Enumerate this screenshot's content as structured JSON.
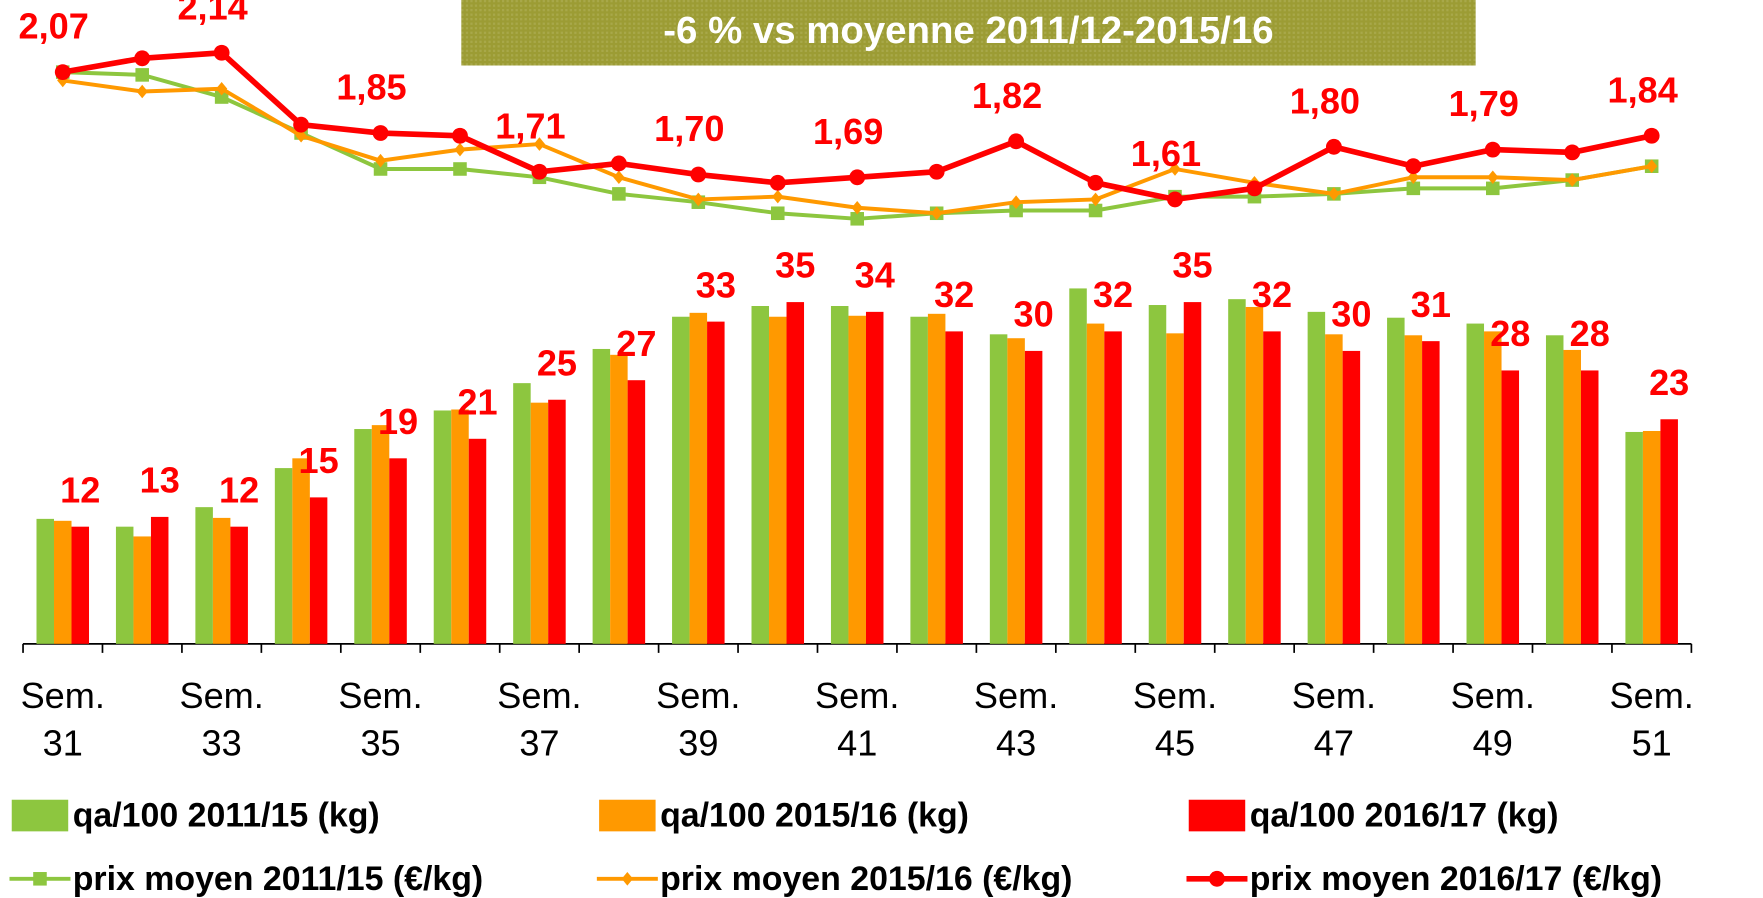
{
  "chart_data": {
    "type": "bar",
    "annotation": "-6 % vs moyenne 2011/12-2015/16",
    "categories": [
      "Sem. 31",
      null,
      "Sem. 33",
      null,
      "Sem. 35",
      null,
      "Sem. 37",
      null,
      "Sem. 39",
      null,
      "Sem. 41",
      null,
      "Sem. 43",
      null,
      "Sem. 45",
      null,
      "Sem. 47",
      null,
      "Sem. 49",
      null,
      "Sem. 51"
    ],
    "ylim": [
      0,
      45
    ],
    "y2lim": [
      1.2,
      2.2
    ],
    "series": [
      {
        "name": "qa/100 2011/15 (kg)",
        "type": "bar",
        "color": "#8dc63f",
        "values": [
          12.8,
          12.0,
          14.0,
          18.0,
          22.0,
          23.9,
          26.7,
          30.2,
          33.5,
          34.6,
          34.6,
          33.5,
          31.7,
          36.4,
          34.7,
          35.3,
          34.0,
          33.4,
          32.8,
          31.6,
          21.7
        ]
      },
      {
        "name": "qa/100 2015/16 (kg)",
        "type": "bar",
        "color": "#ff9900",
        "values": [
          12.6,
          11.0,
          12.9,
          19.0,
          22.4,
          24.0,
          24.7,
          29.6,
          33.9,
          33.5,
          33.6,
          33.8,
          31.3,
          32.8,
          31.8,
          34.5,
          31.7,
          31.6,
          32.0,
          30.1,
          21.8
        ]
      },
      {
        "name": "qa/100 2016/17 (kg)",
        "type": "bar",
        "color": "#ff0000",
        "labels": true,
        "values": [
          12,
          13,
          12,
          15,
          19,
          21,
          25,
          27,
          33,
          35,
          34,
          32,
          30,
          32,
          35,
          32,
          30,
          31,
          28,
          28,
          23
        ]
      },
      {
        "name": "prix moyen 2011/15 (€/kg)",
        "type": "line",
        "axis": "y2",
        "color": "#8dc63f",
        "marker": "square",
        "values": [
          2.07,
          2.06,
          1.98,
          1.85,
          1.72,
          1.72,
          1.69,
          1.63,
          1.6,
          1.56,
          1.54,
          1.56,
          1.57,
          1.57,
          1.62,
          1.62,
          1.63,
          1.65,
          1.65,
          1.68,
          1.73
        ]
      },
      {
        "name": "prix moyen 2015/16 (€/kg)",
        "type": "line",
        "axis": "y2",
        "color": "#ff9900",
        "marker": "diamond",
        "values": [
          2.04,
          2.0,
          2.01,
          1.84,
          1.75,
          1.79,
          1.81,
          1.69,
          1.61,
          1.62,
          1.58,
          1.56,
          1.6,
          1.61,
          1.72,
          1.67,
          1.63,
          1.69,
          1.69,
          1.68,
          1.73
        ]
      },
      {
        "name": "prix moyen 2016/17 (€/kg)",
        "type": "line",
        "axis": "y2",
        "color": "#ff0000",
        "marker": "circle",
        "values": [
          2.07,
          2.12,
          2.14,
          1.88,
          1.85,
          1.84,
          1.71,
          1.74,
          1.7,
          1.67,
          1.69,
          1.71,
          1.82,
          1.67,
          1.61,
          1.65,
          1.8,
          1.73,
          1.79,
          1.78,
          1.84
        ],
        "value_labels": [
          "2,07",
          null,
          "2,14",
          null,
          "1,85",
          null,
          "1,71",
          null,
          "1,70",
          null,
          "1,69",
          null,
          "1,82",
          null,
          "1,61",
          null,
          "1,80",
          null,
          "1,79",
          null,
          "1,84"
        ]
      }
    ]
  }
}
